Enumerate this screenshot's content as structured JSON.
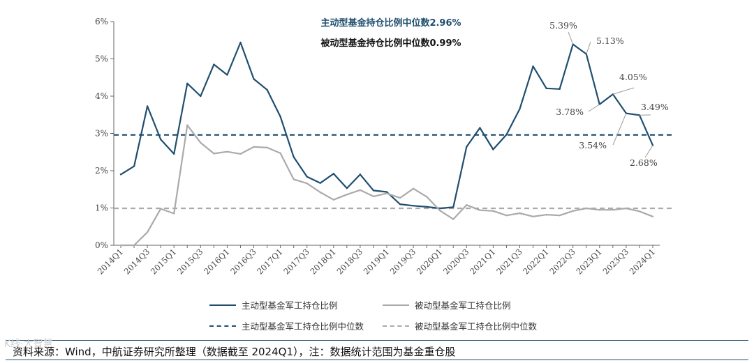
{
  "chart_data": {
    "type": "line",
    "categories": [
      "2014Q1",
      "2014Q2",
      "2014Q3",
      "2014Q4",
      "2015Q1",
      "2015Q2",
      "2015Q3",
      "2015Q4",
      "2016Q1",
      "2016Q2",
      "2016Q3",
      "2016Q4",
      "2017Q1",
      "2017Q2",
      "2017Q3",
      "2017Q4",
      "2018Q1",
      "2018Q2",
      "2018Q3",
      "2018Q4",
      "2019Q1",
      "2019Q2",
      "2019Q3",
      "2019Q4",
      "2020Q1",
      "2020Q2",
      "2020Q3",
      "2020Q4",
      "2021Q1",
      "2021Q2",
      "2021Q3",
      "2021Q4",
      "2022Q1",
      "2022Q2",
      "2022Q3",
      "2022Q4",
      "2023Q1",
      "2023Q2",
      "2023Q3",
      "2023Q4",
      "2024Q1"
    ],
    "tick_labels": [
      "2014Q1",
      "2014Q3",
      "2015Q1",
      "2015Q3",
      "2016Q1",
      "2016Q3",
      "2017Q1",
      "2017Q3",
      "2018Q1",
      "2018Q3",
      "2019Q1",
      "2019Q3",
      "2020Q1",
      "2020Q3",
      "2021Q1",
      "2021Q3",
      "2022Q1",
      "2022Q3",
      "2023Q1",
      "2023Q3",
      "2024Q1"
    ],
    "y_ticks": [
      "0%",
      "1%",
      "2%",
      "3%",
      "4%",
      "5%",
      "6%"
    ],
    "ylim": [
      0,
      6
    ],
    "series": [
      {
        "name": "主动型基金军工持仓比例",
        "color": "#1f4e6e",
        "style": "solid",
        "values": [
          1.9,
          2.12,
          3.73,
          2.84,
          2.45,
          4.34,
          4.0,
          4.85,
          4.57,
          5.44,
          4.46,
          4.17,
          3.45,
          2.37,
          1.84,
          1.67,
          1.92,
          1.53,
          1.9,
          1.47,
          1.43,
          1.1,
          1.06,
          1.03,
          0.99,
          1.02,
          2.64,
          3.15,
          2.57,
          2.97,
          3.66,
          4.8,
          4.21,
          4.19,
          5.39,
          5.13,
          3.78,
          4.05,
          3.54,
          3.49,
          2.68
        ]
      },
      {
        "name": "被动型基金军工持仓比例",
        "color": "#aaaaaa",
        "style": "solid",
        "values": [
          0.0,
          0.0,
          0.35,
          0.98,
          0.85,
          3.22,
          2.75,
          2.46,
          2.51,
          2.45,
          2.64,
          2.62,
          2.47,
          1.77,
          1.66,
          1.42,
          1.22,
          1.36,
          1.48,
          1.31,
          1.39,
          1.27,
          1.52,
          1.3,
          0.93,
          0.7,
          1.08,
          0.94,
          0.92,
          0.8,
          0.86,
          0.77,
          0.82,
          0.8,
          0.92,
          0.99,
          0.95,
          0.95,
          0.99,
          0.91,
          0.77
        ]
      },
      {
        "name": "主动型基金军工持仓比例中位数",
        "color": "#1f4e6e",
        "style": "dashed",
        "constant": 2.96
      },
      {
        "name": "被动型基金军工持仓比例中位数",
        "color": "#aaaaaa",
        "style": "dashed",
        "constant": 0.99
      }
    ],
    "annotations": [
      {
        "text": "主动型基金持仓比例中位数2.96%"
      },
      {
        "text": "被动型基金持仓比例中位数0.99%"
      },
      {
        "text": "5.39%"
      },
      {
        "text": "5.13%"
      },
      {
        "text": "4.05%"
      },
      {
        "text": "3.78%"
      },
      {
        "text": "3.49%"
      },
      {
        "text": "3.54%"
      },
      {
        "text": "2.68%"
      }
    ],
    "grid": false,
    "legend_position": "bottom"
  },
  "source": "资料来源：Wind，中航证券研究所整理（数据截至 2024Q1），注：数据统计范围为基金重仓股",
  "watermark": "K线·大智慧"
}
